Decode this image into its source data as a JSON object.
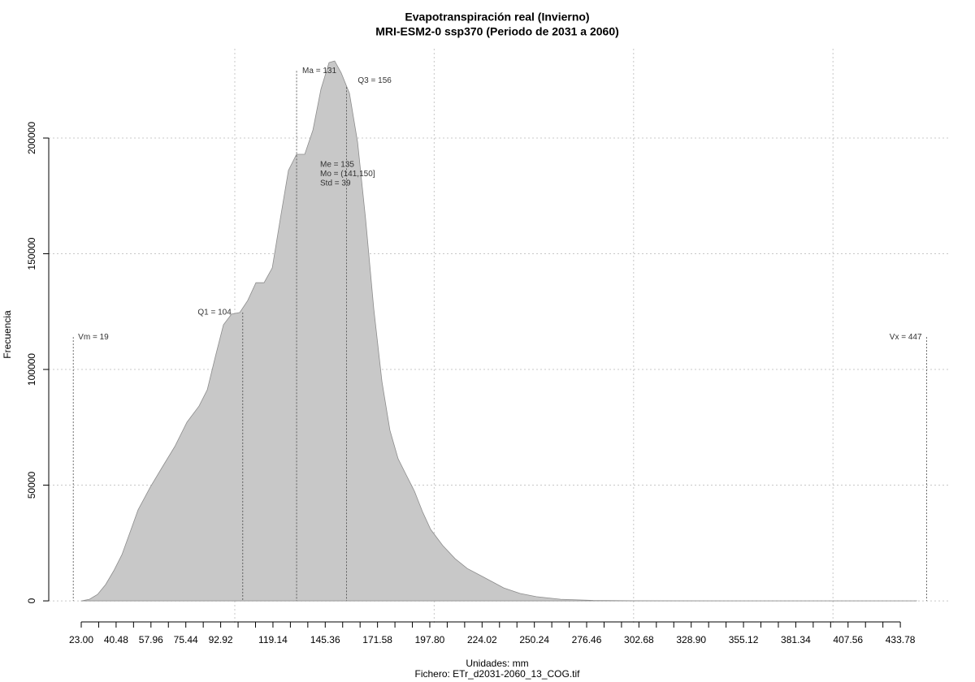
{
  "chart_data": {
    "type": "area",
    "title": "Evapotranspiración real (Invierno)",
    "subtitle": "MRI-ESM2-0 ssp370 (Periodo de 2031 a 2060)",
    "xlabel": "Unidades: mm",
    "caption": "Fichero: ETr_d2031-2060_13_COG.tif",
    "ylabel": "Frecuencia",
    "color": "#c8c8c8",
    "line_color": "#8c8c8c",
    "x": [
      23,
      27.1,
      31.2,
      35.2,
      39.3,
      43.4,
      47.4,
      51.5,
      57.6,
      63.7,
      69.9,
      76.0,
      82.1,
      86.2,
      90.2,
      94.3,
      98.4,
      102.5,
      106.5,
      110.6,
      114.7,
      118.8,
      122.8,
      126.9,
      131.0,
      135.1,
      139.2,
      143.2,
      147.3,
      150.1,
      153.4,
      157.5,
      161.6,
      165.6,
      169.7,
      173.8,
      177.8,
      181.9,
      186.0,
      190.1,
      194.1,
      198.2,
      204.3,
      210.5,
      216.6,
      222.7,
      228.8,
      234.9,
      243.0,
      251.2,
      263.4,
      279.7,
      300,
      349,
      441.9
    ],
    "values": [
      0,
      700,
      2800,
      7000,
      13000,
      20000,
      29500,
      39300,
      49100,
      57900,
      66700,
      77200,
      84200,
      91200,
      105300,
      119300,
      123900,
      124600,
      129800,
      137500,
      137500,
      143900,
      164900,
      186000,
      193000,
      193000,
      203500,
      221100,
      232600,
      233300,
      228100,
      219300,
      198200,
      164900,
      126300,
      94700,
      73700,
      61400,
      54400,
      47400,
      38600,
      30900,
      23900,
      18200,
      14000,
      11200,
      8400,
      5600,
      3200,
      1800,
      700,
      200,
      50,
      0,
      0
    ],
    "xlim": [
      6.7,
      459
    ],
    "ylim": [
      -9800,
      238600
    ],
    "xticks": [
      {
        "value": 23,
        "label": "23.00"
      },
      {
        "value": 40.48,
        "label": "40.48"
      },
      {
        "value": 57.96,
        "label": "57.96"
      },
      {
        "value": 75.44,
        "label": "75.44"
      },
      {
        "value": 92.92,
        "label": "92.92"
      },
      {
        "value": 119.14,
        "label": "119.14"
      },
      {
        "value": 145.36,
        "label": "145.36"
      },
      {
        "value": 171.58,
        "label": "171.58"
      },
      {
        "value": 197.8,
        "label": "197.80"
      },
      {
        "value": 224.02,
        "label": "224.02"
      },
      {
        "value": 250.24,
        "label": "250.24"
      },
      {
        "value": 276.46,
        "label": "276.46"
      },
      {
        "value": 302.68,
        "label": "302.68"
      },
      {
        "value": 328.9,
        "label": "328.90"
      },
      {
        "value": 355.12,
        "label": "355.12"
      },
      {
        "value": 381.34,
        "label": "381.34"
      },
      {
        "value": 407.56,
        "label": "407.56"
      },
      {
        "value": 433.78,
        "label": "433.78"
      }
    ],
    "xminorticks": [
      31.74,
      49.22,
      66.7,
      84.18,
      101.66,
      110.4,
      127.88,
      136.62,
      154.1,
      162.84,
      180.32,
      189.06,
      206.54,
      215.28,
      232.76,
      241.5,
      258.98,
      267.72,
      285.2,
      293.94,
      311.42,
      320.16,
      337.64,
      346.38,
      363.86,
      372.6,
      390.08,
      398.82,
      416.3,
      425.04
    ],
    "xgrid": [
      100,
      200,
      300,
      400
    ],
    "yticks": [
      0,
      50000,
      100000,
      150000,
      200000
    ],
    "grid": true,
    "markers": [
      {
        "label": "Vm = 19",
        "value": 19,
        "height": 114000
      },
      {
        "label": "Q1 = 104",
        "value": 104,
        "height": 124600
      },
      {
        "label": "Ma = 131",
        "value": 131,
        "height": 229000
      },
      {
        "label": "Q3 = 156",
        "value": 156,
        "height": 222000
      },
      {
        "label": "Vx = 447",
        "value": 447,
        "height": 114000
      }
    ],
    "stats": [
      "Me = 135",
      "Mo = (141,150]",
      "Std = 39"
    ]
  }
}
